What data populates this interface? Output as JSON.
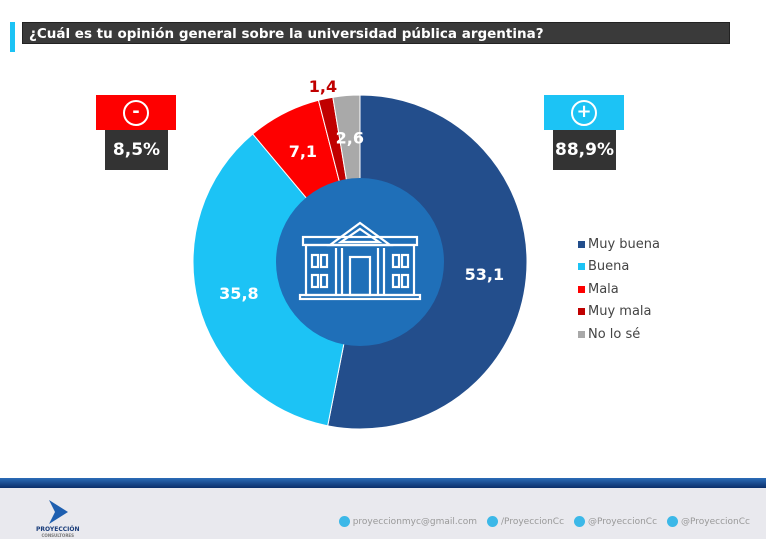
{
  "title": "¿Cuál es tu opinión general sobre la universidad pública argentina?",
  "badges": {
    "negative": {
      "symbol": "-",
      "value": "8,5%",
      "color": "#fe0000"
    },
    "positive": {
      "symbol": "+",
      "value": "88,9%",
      "color": "#1cc3f5"
    }
  },
  "chart_data": {
    "type": "pie",
    "donut": true,
    "title": "¿Cuál es tu opinión general sobre la universidad pública argentina?",
    "categories": [
      "Muy buena",
      "Buena",
      "Mala",
      "Muy mala",
      "No lo sé"
    ],
    "values": [
      53.1,
      35.8,
      7.1,
      1.4,
      2.6
    ],
    "labels": [
      "53,1",
      "35,8",
      "7,1",
      "1,4",
      "2,6"
    ],
    "colors": [
      "#234e8c",
      "#1cc3f5",
      "#fe0000",
      "#c00000",
      "#a9a9a9"
    ],
    "legend_position": "right",
    "center_icon": "university-building-icon",
    "center_color": "#1f6fb8"
  },
  "footer": {
    "brand": "PROYECCIÓN",
    "brand_sub": "CONSULTORES",
    "email": "proyeccionmyc@gmail.com",
    "facebook": "/ProyeccionCc",
    "twitter": "@ProyeccionCc",
    "instagram": "@ProyeccionCc"
  }
}
